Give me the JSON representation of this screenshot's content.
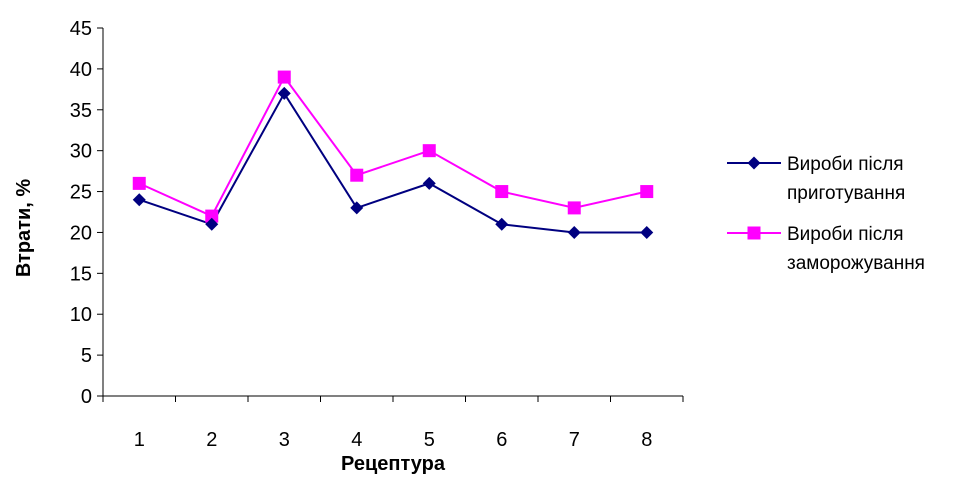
{
  "chart_data": {
    "type": "line",
    "title": "",
    "xlabel": "Рецептура",
    "ylabel": "Втрати, %",
    "categories": [
      "1",
      "2",
      "3",
      "4",
      "5",
      "6",
      "7",
      "8"
    ],
    "ylim": [
      0,
      45
    ],
    "yticks": [
      0,
      5,
      10,
      15,
      20,
      25,
      30,
      35,
      40,
      45
    ],
    "grid": false,
    "legend_position": "right",
    "series": [
      {
        "name": "Вироби після приготування",
        "name_lines": [
          "Вироби після",
          "приготування"
        ],
        "values": [
          24,
          21,
          37,
          23,
          26,
          21,
          20,
          20
        ],
        "color": "#000080",
        "marker": "diamond"
      },
      {
        "name": "Вироби після заморожування",
        "name_lines": [
          "Вироби після",
          "заморожування"
        ],
        "values": [
          26,
          22,
          39,
          27,
          30,
          25,
          23,
          25
        ],
        "color": "#FF00FF",
        "marker": "square"
      }
    ]
  }
}
